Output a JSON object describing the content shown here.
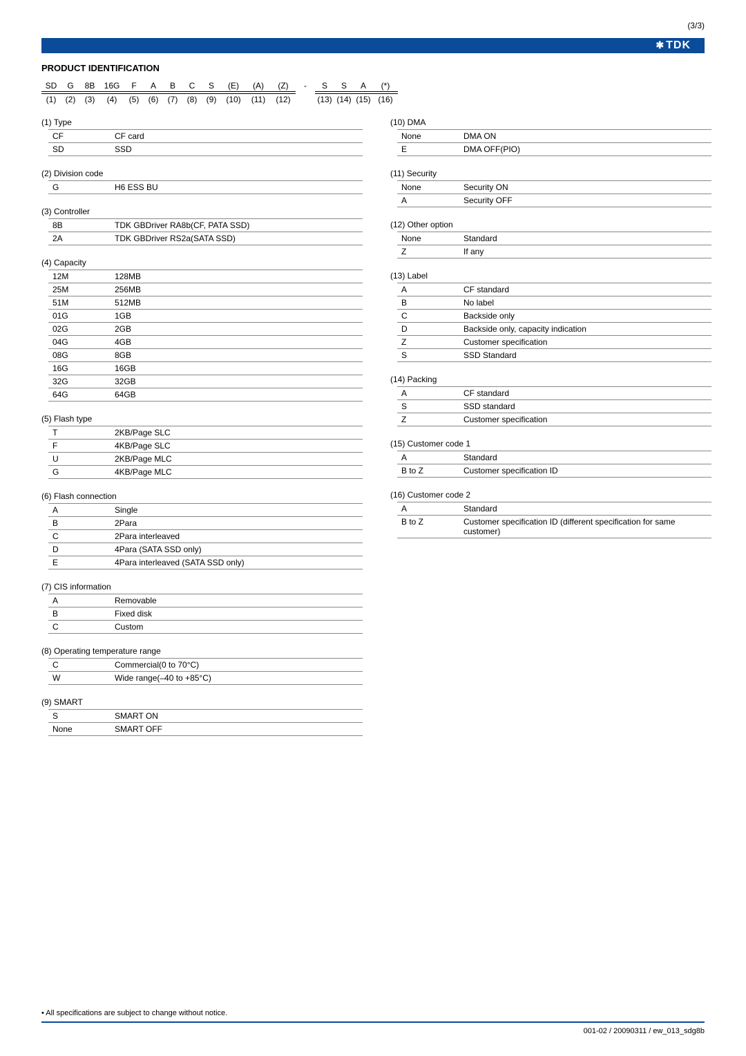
{
  "page_number": "(3/3)",
  "logo": "TDK",
  "section_title": "PRODUCT IDENTIFICATION",
  "code_line": [
    "SD",
    "G",
    "8B",
    "16G",
    "F",
    "A",
    "B",
    "C",
    "S",
    "(E)",
    "(A)",
    "(Z)",
    "-",
    "S",
    "S",
    "A",
    "(*)"
  ],
  "index_line": [
    "(1)",
    "(2)",
    "(3)",
    "(4)",
    "(5)",
    "(6)",
    "(7)",
    "(8)",
    "(9)",
    "(10)",
    "(11)",
    "(12)",
    "",
    "(13)",
    "(14)",
    "(15)",
    "(16)"
  ],
  "left_sections": [
    {
      "title": "(1) Type",
      "rows": [
        [
          "CF",
          "CF card"
        ],
        [
          "SD",
          "SSD"
        ]
      ]
    },
    {
      "title": "(2) Division code",
      "rows": [
        [
          "G",
          "H6 ESS BU"
        ]
      ]
    },
    {
      "title": "(3) Controller",
      "rows": [
        [
          "8B",
          "TDK GBDriver RA8b(CF, PATA SSD)"
        ],
        [
          "2A",
          "TDK GBDriver RS2a(SATA SSD)"
        ]
      ]
    },
    {
      "title": "(4) Capacity",
      "rows": [
        [
          "12M",
          "128MB"
        ],
        [
          "25M",
          "256MB"
        ],
        [
          "51M",
          "512MB"
        ],
        [
          "01G",
          "1GB"
        ],
        [
          "02G",
          "2GB"
        ],
        [
          "04G",
          "4GB"
        ],
        [
          "08G",
          "8GB"
        ],
        [
          "16G",
          "16GB"
        ],
        [
          "32G",
          "32GB"
        ],
        [
          "64G",
          "64GB"
        ]
      ]
    },
    {
      "title": "(5) Flash type",
      "rows": [
        [
          "T",
          "2KB/Page SLC"
        ],
        [
          "F",
          "4KB/Page SLC"
        ],
        [
          "U",
          "2KB/Page MLC"
        ],
        [
          "G",
          "4KB/Page MLC"
        ]
      ]
    },
    {
      "title": "(6) Flash connection",
      "rows": [
        [
          "A",
          "Single"
        ],
        [
          "B",
          "2Para"
        ],
        [
          "C",
          "2Para interleaved"
        ],
        [
          "D",
          "4Para (SATA SSD only)"
        ],
        [
          "E",
          "4Para interleaved (SATA SSD only)"
        ]
      ]
    },
    {
      "title": "(7) CIS information",
      "rows": [
        [
          "A",
          "Removable"
        ],
        [
          "B",
          "Fixed disk"
        ],
        [
          "C",
          "Custom"
        ]
      ]
    },
    {
      "title": "(8) Operating temperature range",
      "rows": [
        [
          "C",
          "Commercial(0 to 70°C)"
        ],
        [
          "W",
          "Wide range(–40 to +85°C)"
        ]
      ]
    },
    {
      "title": "(9) SMART",
      "rows": [
        [
          "S",
          "SMART ON"
        ],
        [
          "None",
          "SMART OFF"
        ]
      ]
    }
  ],
  "right_sections": [
    {
      "title": "(10) DMA",
      "rows": [
        [
          "None",
          "DMA ON"
        ],
        [
          "E",
          "DMA OFF(PIO)"
        ]
      ]
    },
    {
      "title": "(11) Security",
      "rows": [
        [
          "None",
          "Security ON"
        ],
        [
          "A",
          "Security OFF"
        ]
      ]
    },
    {
      "title": "(12) Other option",
      "rows": [
        [
          "None",
          "Standard"
        ],
        [
          "Z",
          "If any"
        ]
      ]
    },
    {
      "title": "(13) Label",
      "rows": [
        [
          "A",
          "CF standard"
        ],
        [
          "B",
          "No label"
        ],
        [
          "C",
          "Backside only"
        ],
        [
          "D",
          "Backside only, capacity indication"
        ],
        [
          "Z",
          "Customer specification"
        ],
        [
          "S",
          "SSD Standard"
        ]
      ]
    },
    {
      "title": "(14) Packing",
      "rows": [
        [
          "A",
          "CF standard"
        ],
        [
          "S",
          "SSD standard"
        ],
        [
          "Z",
          "Customer specification"
        ]
      ]
    },
    {
      "title": "(15) Customer code 1",
      "rows": [
        [
          "A",
          "Standard"
        ],
        [
          "B to Z",
          "Customer specification ID"
        ]
      ]
    },
    {
      "title": "(16) Customer code 2",
      "rows": [
        [
          "A",
          "Standard"
        ],
        [
          "B to Z",
          "Customer specification ID (different specification for same customer)"
        ]
      ]
    }
  ],
  "footer_note": "• All specifications are subject to change without notice.",
  "footer_id": "001-02 / 20090311 / ew_013_sdg8b",
  "colors": {
    "brand": "#0a4b9a",
    "text": "#000000",
    "border": "#888888",
    "bg": "#ffffff"
  }
}
